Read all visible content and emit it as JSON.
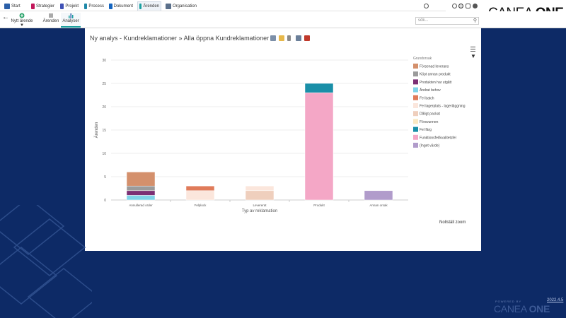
{
  "nav": {
    "items": [
      {
        "label": "Start",
        "color": "#2b5fa8"
      },
      {
        "label": "Strategier",
        "color": "#c2185b"
      },
      {
        "label": "Projekt",
        "color": "#3f51b5"
      },
      {
        "label": "Process",
        "color": "#1e88a8"
      },
      {
        "label": "Dokument",
        "color": "#1565c0"
      },
      {
        "label": "Ärenden",
        "color": "#1aa0a0"
      },
      {
        "label": "Organisation",
        "color": "#5a6f8a"
      }
    ],
    "active": "Ärenden"
  },
  "brand": {
    "name_light": "CANEA ",
    "name_bold": "ONE"
  },
  "search": {
    "placeholder": "sök..."
  },
  "subbar": {
    "new_label": "Nytt ärende",
    "arenden_label": "Ärenden",
    "analyser_label": "Analyser"
  },
  "panel": {
    "title": "Ny analys - Kundreklamationer » Alla öppna Kundreklamationer",
    "reset_zoom": "Nollställ zoom"
  },
  "chart_data": {
    "type": "bar",
    "stacked": true,
    "xlabel": "Typ av reklamation",
    "ylabel": "Ärenden",
    "ylim": [
      0,
      30
    ],
    "yticks": [
      0,
      5,
      10,
      15,
      20,
      25,
      30
    ],
    "grid": true,
    "legend_position": "right",
    "legend_title": "Grundorsak",
    "categories": [
      "Annullerad order",
      "Felplock",
      "Levererat",
      "Produkt",
      "Annan orsak"
    ],
    "series": [
      {
        "name": "Försenad leverans",
        "color": "#d4906c",
        "values": [
          3,
          0,
          0,
          0,
          0
        ]
      },
      {
        "name": "Köpt annan produkt",
        "color": "#9b9b9b",
        "values": [
          1,
          0,
          0,
          0,
          0
        ]
      },
      {
        "name": "Produkten har utgått",
        "color": "#7b2f74",
        "values": [
          1,
          0,
          0,
          0,
          0
        ]
      },
      {
        "name": "Ändrat behov",
        "color": "#7fd3e8",
        "values": [
          1,
          0,
          0,
          0,
          0
        ]
      },
      {
        "name": "Fel batch",
        "color": "#e07b5a",
        "values": [
          0,
          1,
          0,
          0,
          0
        ]
      },
      {
        "name": "Fel lagerplats - lagerläggning",
        "color": "#fbe6dc",
        "values": [
          0,
          2,
          1,
          0,
          0
        ]
      },
      {
        "name": "Dåligt packat",
        "color": "#efcfbd",
        "values": [
          0,
          0,
          2,
          0,
          0
        ]
      },
      {
        "name": "Försvunnen",
        "color": "#fbe8c2",
        "values": [
          0,
          0,
          0,
          0,
          0
        ]
      },
      {
        "name": "Fel färg",
        "color": "#1a8fa8",
        "values": [
          0,
          0,
          0,
          2,
          0
        ]
      },
      {
        "name": "Funktionsfel/kvalitetsfel",
        "color": "#f4a7c6",
        "values": [
          0,
          0,
          0,
          23,
          0
        ]
      },
      {
        "name": "(Inget värde)",
        "color": "#b19ccb",
        "values": [
          0,
          0,
          0,
          0,
          2
        ]
      }
    ]
  },
  "footer": {
    "powered_by": "POWERED BY",
    "version": "2022.4.5",
    "brand_light": "CANEA ",
    "brand_bold": "ONE"
  }
}
